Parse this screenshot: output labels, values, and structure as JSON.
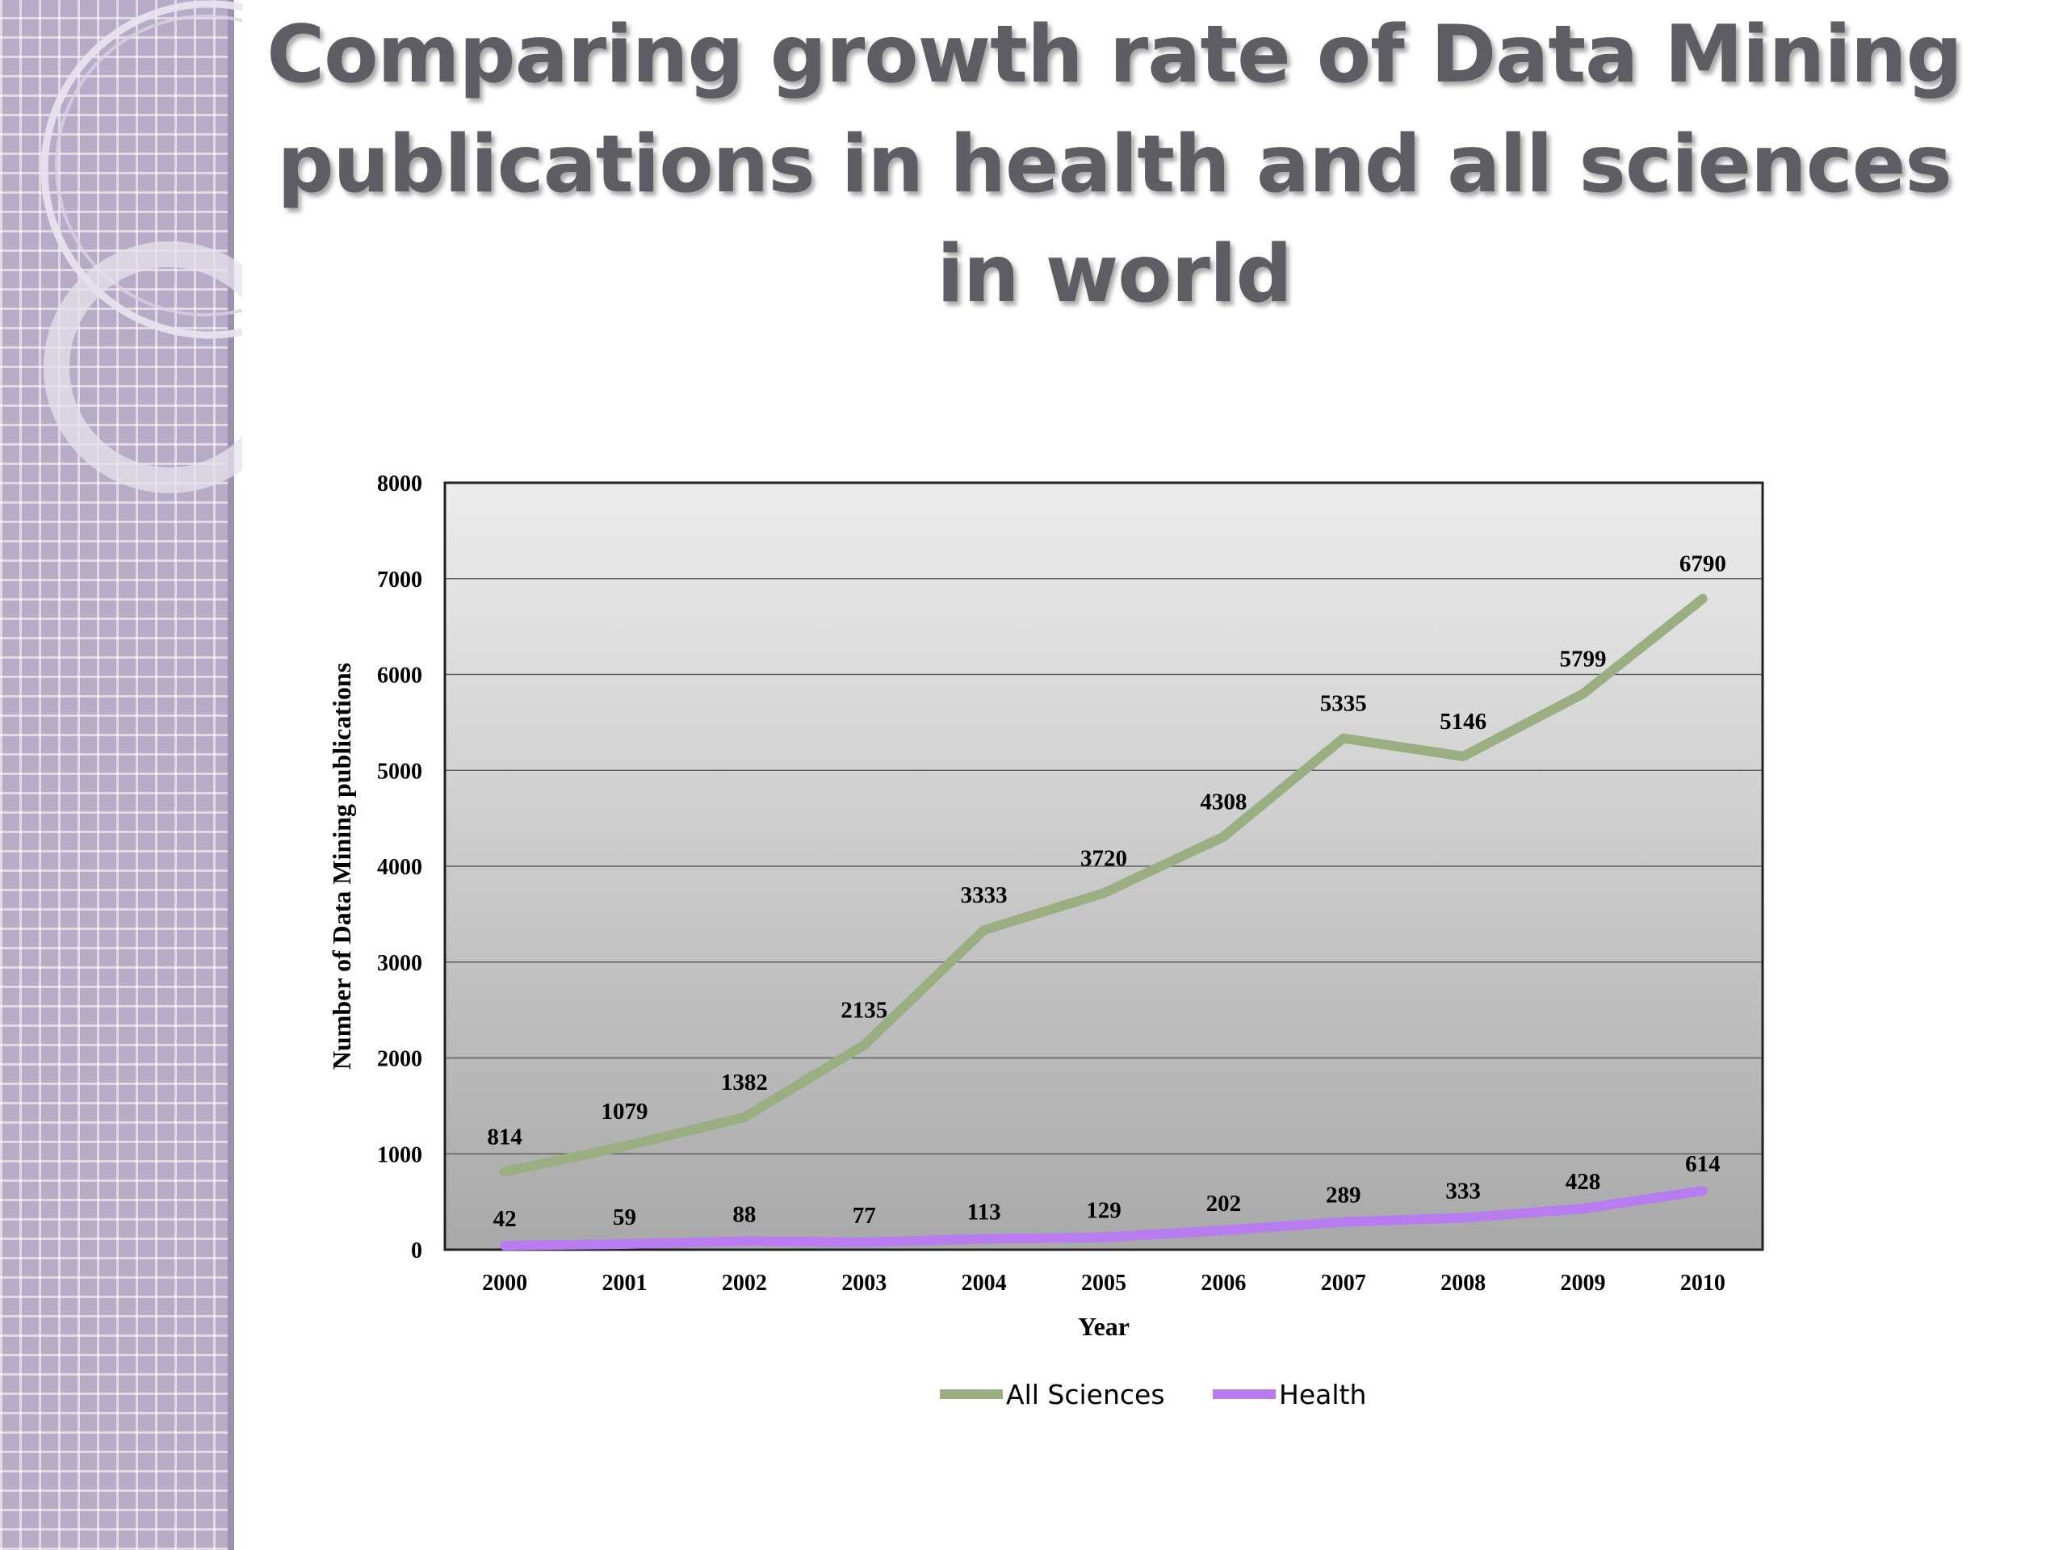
{
  "slide": {
    "title": "Comparing growth rate of Data Mining publications in health and all sciences in world"
  },
  "colors": {
    "all_sciences": "#9aae82",
    "health": "#b77cf0",
    "sidebar": "#b7acc8"
  },
  "chart_data": {
    "type": "line",
    "xlabel": "Year",
    "ylabel": "Number of Data Mining publications",
    "categories": [
      "2000",
      "2001",
      "2002",
      "2003",
      "2004",
      "2005",
      "2006",
      "2007",
      "2008",
      "2009",
      "2010"
    ],
    "ylim": [
      0,
      8000
    ],
    "yticks": [
      "0",
      "1000",
      "2000",
      "3000",
      "4000",
      "5000",
      "6000",
      "7000",
      "8000"
    ],
    "grid": true,
    "legend_position": "bottom",
    "series": [
      {
        "name": "All Sciences",
        "color": "#9aae82",
        "values": [
          814,
          1079,
          1382,
          2135,
          3333,
          3720,
          4308,
          5335,
          5146,
          5799,
          6790
        ],
        "labels": [
          "814",
          "1079",
          "1382",
          "2135",
          "3333",
          "3720",
          "4308",
          "5335",
          "5146",
          "5799",
          "6790"
        ]
      },
      {
        "name": "Health",
        "color": "#b77cf0",
        "values": [
          42,
          59,
          88,
          77,
          113,
          129,
          202,
          289,
          333,
          428,
          614
        ],
        "labels": [
          "42",
          "59",
          "88",
          "77",
          "113",
          "129",
          "202",
          "289",
          "333",
          "428",
          "614"
        ]
      }
    ]
  }
}
